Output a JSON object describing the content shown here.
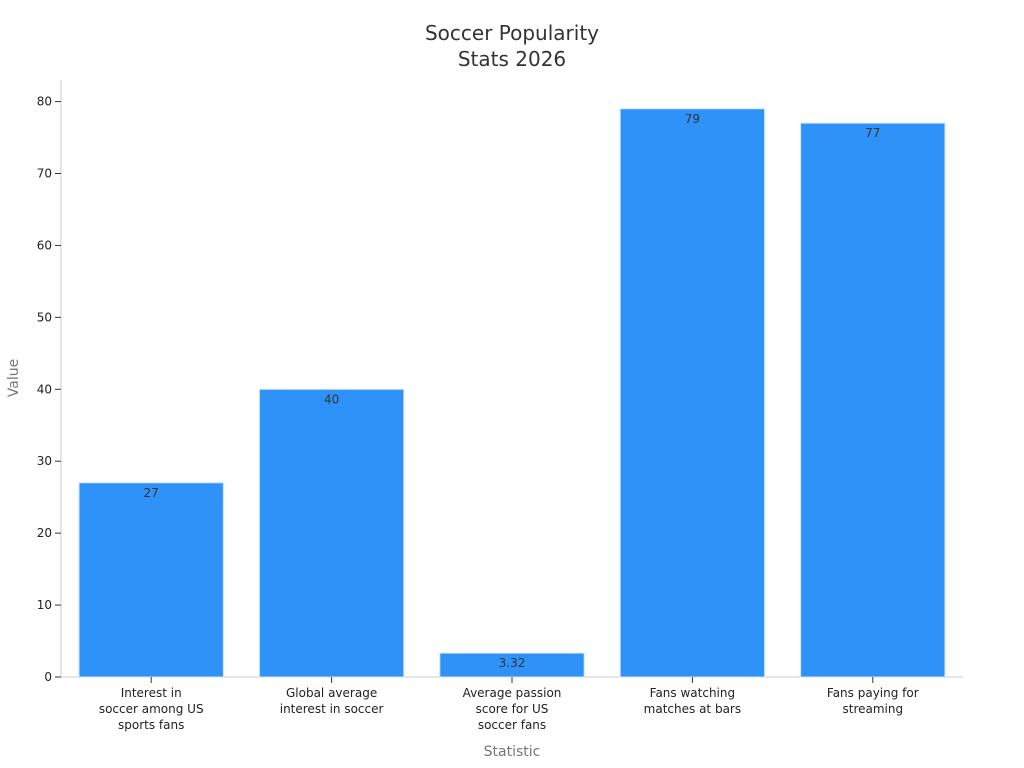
{
  "chart_data": {
    "type": "bar",
    "title_lines": [
      "Soccer Popularity",
      "Stats 2026"
    ],
    "xlabel": "Statistic",
    "ylabel": "Value",
    "ylim": [
      0,
      83
    ],
    "yticks": [
      0,
      10,
      20,
      30,
      40,
      50,
      60,
      70,
      80
    ],
    "grid": false,
    "bar_color": "#2e92f8",
    "bar_edge_color": "#cfe3f7",
    "categories": [
      [
        "Interest in",
        "soccer among US",
        "sports fans"
      ],
      [
        "Global average",
        "interest in soccer"
      ],
      [
        "Average passion",
        "score for US",
        "soccer fans"
      ],
      [
        "Fans watching",
        "matches at bars"
      ],
      [
        "Fans paying for",
        "streaming"
      ]
    ],
    "values": [
      27,
      40,
      3.32,
      79,
      77
    ],
    "data_labels": [
      "27",
      "40",
      "3.32",
      "79",
      "77"
    ]
  }
}
